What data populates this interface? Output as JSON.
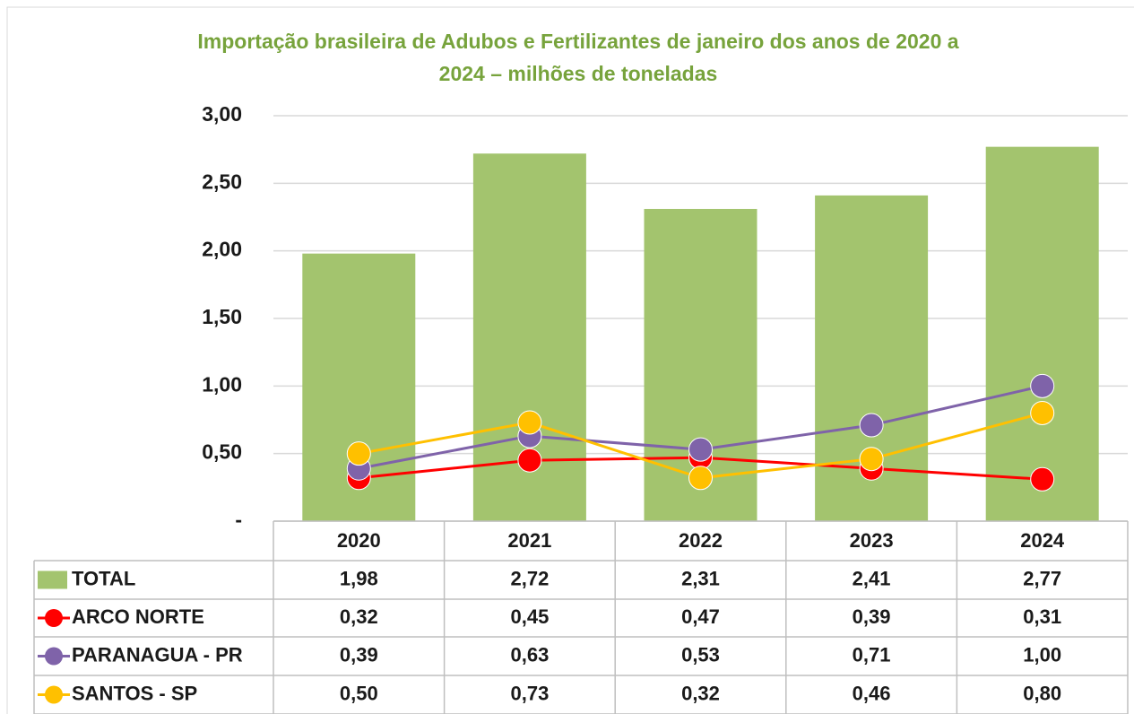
{
  "chart_data": {
    "type": "bar",
    "title": [
      "Importação brasileira de Adubos e Fertilizantes de janeiro dos anos de 2020 a",
      "2024 – milhões de toneladas"
    ],
    "categories": [
      "2020",
      "2021",
      "2022",
      "2023",
      "2024"
    ],
    "ylim": [
      0,
      3
    ],
    "yticks": [
      {
        "value": 0,
        "label": "-"
      },
      {
        "value": 0.5,
        "label": "0,50"
      },
      {
        "value": 1,
        "label": "1,00"
      },
      {
        "value": 1.5,
        "label": "1,50"
      },
      {
        "value": 2,
        "label": "2,00"
      },
      {
        "value": 2.5,
        "label": "2,50"
      },
      {
        "value": 3,
        "label": "3,00"
      }
    ],
    "grid": true,
    "series": [
      {
        "name": "TOTAL",
        "type": "bar",
        "color": "#a3c46e",
        "values": [
          1.98,
          2.72,
          2.31,
          2.41,
          2.77
        ],
        "value_labels": [
          "1,98",
          "2,72",
          "2,31",
          "2,41",
          "2,77"
        ]
      },
      {
        "name": "ARCO NORTE",
        "type": "line",
        "color": "#ff0000",
        "values": [
          0.32,
          0.45,
          0.47,
          0.39,
          0.31
        ],
        "value_labels": [
          "0,32",
          "0,45",
          "0,47",
          "0,39",
          "0,31"
        ]
      },
      {
        "name": "PARANAGUA - PR",
        "type": "line",
        "color": "#7f63a9",
        "values": [
          0.39,
          0.63,
          0.53,
          0.71,
          1.0
        ],
        "value_labels": [
          "0,39",
          "0,63",
          "0,53",
          "0,71",
          "1,00"
        ]
      },
      {
        "name": "SANTOS - SP",
        "type": "line",
        "color": "#ffc000",
        "values": [
          0.5,
          0.73,
          0.32,
          0.46,
          0.8
        ],
        "value_labels": [
          "0,50",
          "0,73",
          "0,32",
          "0,46",
          "0,80"
        ]
      }
    ]
  }
}
